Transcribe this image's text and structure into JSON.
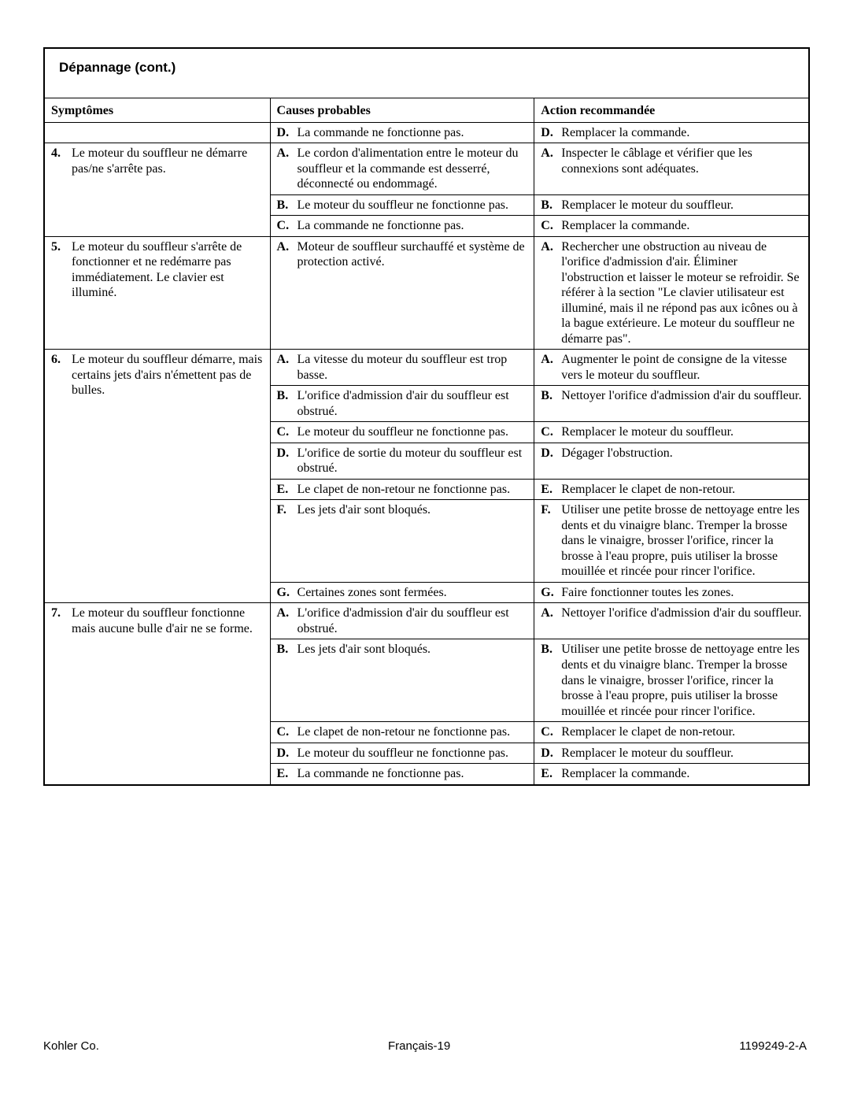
{
  "section_title": "Dépannage (cont.)",
  "headers": {
    "symptoms": "Symptômes",
    "causes": "Causes probables",
    "action": "Action recommandée"
  },
  "rows": [
    {
      "sym_num": "",
      "symptom": "",
      "sub": [
        {
          "m": "D.",
          "cause": "La commande ne fonctionne pas.",
          "action": "Remplacer la commande."
        }
      ],
      "sep": false
    },
    {
      "sym_num": "4.",
      "symptom": "Le moteur du souffleur ne démarre pas/ne s'arrête pas.",
      "sub": [
        {
          "m": "A.",
          "cause": "Le cordon d'alimentation entre le moteur du souffleur et la commande est desserré, déconnecté ou endommagé.",
          "action": "Inspecter le câblage et vérifier que les connexions sont adéquates."
        },
        {
          "m": "B.",
          "cause": "Le moteur du souffleur ne fonctionne pas.",
          "action": "Remplacer le moteur du souffleur."
        },
        {
          "m": "C.",
          "cause": "La commande ne fonctionne pas.",
          "action": "Remplacer la commande."
        }
      ],
      "sep": true
    },
    {
      "sym_num": "5.",
      "symptom": "Le moteur du souffleur s'arrête de fonctionner et ne redémarre pas immédiatement. Le clavier est illuminé.",
      "sub": [
        {
          "m": "A.",
          "cause": "Moteur de souffleur surchauffé et système de protection activé.",
          "action": "Rechercher une obstruction au niveau de l'orifice d'admission d'air. Éliminer l'obstruction et laisser le moteur se refroidir. Se référer à la section \"Le clavier utilisateur est illuminé, mais il ne répond pas aux icônes ou à la bague extérieure. Le moteur du souffleur ne démarre pas\"."
        }
      ],
      "sep": true
    },
    {
      "sym_num": "6.",
      "symptom": "Le moteur du souffleur démarre, mais certains jets d'airs n'émettent pas de bulles.",
      "sub": [
        {
          "m": "A.",
          "cause": "La vitesse du moteur du souffleur est trop basse.",
          "action": "Augmenter le point de consigne de la vitesse vers le moteur du souffleur."
        },
        {
          "m": "B.",
          "cause": "L'orifice d'admission d'air du souffleur est obstrué.",
          "action": "Nettoyer l'orifice d'admission d'air du souffleur."
        },
        {
          "m": "C.",
          "cause": "Le moteur du souffleur ne fonctionne pas.",
          "action": "Remplacer le moteur du souffleur."
        },
        {
          "m": "D.",
          "cause": "L'orifice de sortie du moteur du souffleur est obstrué.",
          "action": "Dégager l'obstruction."
        },
        {
          "m": "E.",
          "cause": "Le clapet de non-retour ne fonctionne pas.",
          "action": "Remplacer le clapet de non-retour."
        },
        {
          "m": "F.",
          "cause": "Les jets d'air sont bloqués.",
          "action": "Utiliser une petite brosse de nettoyage entre les dents et du vinaigre blanc. Tremper la brosse dans le vinaigre, brosser l'orifice, rincer la brosse à l'eau propre, puis utiliser la brosse mouillée et rincée pour rincer l'orifice."
        },
        {
          "m": "G.",
          "cause": "Certaines zones sont fermées.",
          "action": "Faire fonctionner toutes les zones."
        }
      ],
      "sep": true
    },
    {
      "sym_num": "7.",
      "symptom": "Le moteur du souffleur fonctionne mais aucune bulle d'air ne se forme.",
      "sub": [
        {
          "m": "A.",
          "cause": "L'orifice d'admission d'air du souffleur est obstrué.",
          "action": "Nettoyer l'orifice d'admission d'air du souffleur."
        },
        {
          "m": "B.",
          "cause": "Les jets d'air sont bloqués.",
          "action": "Utiliser une petite brosse de nettoyage entre les dents et du vinaigre blanc. Tremper la brosse dans le vinaigre, brosser l'orifice, rincer la brosse à l'eau propre, puis utiliser la brosse mouillée et rincée pour rincer l'orifice."
        },
        {
          "m": "C.",
          "cause": "Le clapet de non-retour ne fonctionne pas.",
          "action": "Remplacer le clapet de non-retour."
        },
        {
          "m": "D.",
          "cause": "Le moteur du souffleur ne fonctionne pas.",
          "action": "Remplacer le moteur du souffleur."
        },
        {
          "m": "E.",
          "cause": "La commande ne fonctionne pas.",
          "action": "Remplacer la commande."
        }
      ],
      "sep": true
    }
  ],
  "footer": {
    "left": "Kohler Co.",
    "center": "Français-19",
    "right": "1199249-2-A"
  }
}
